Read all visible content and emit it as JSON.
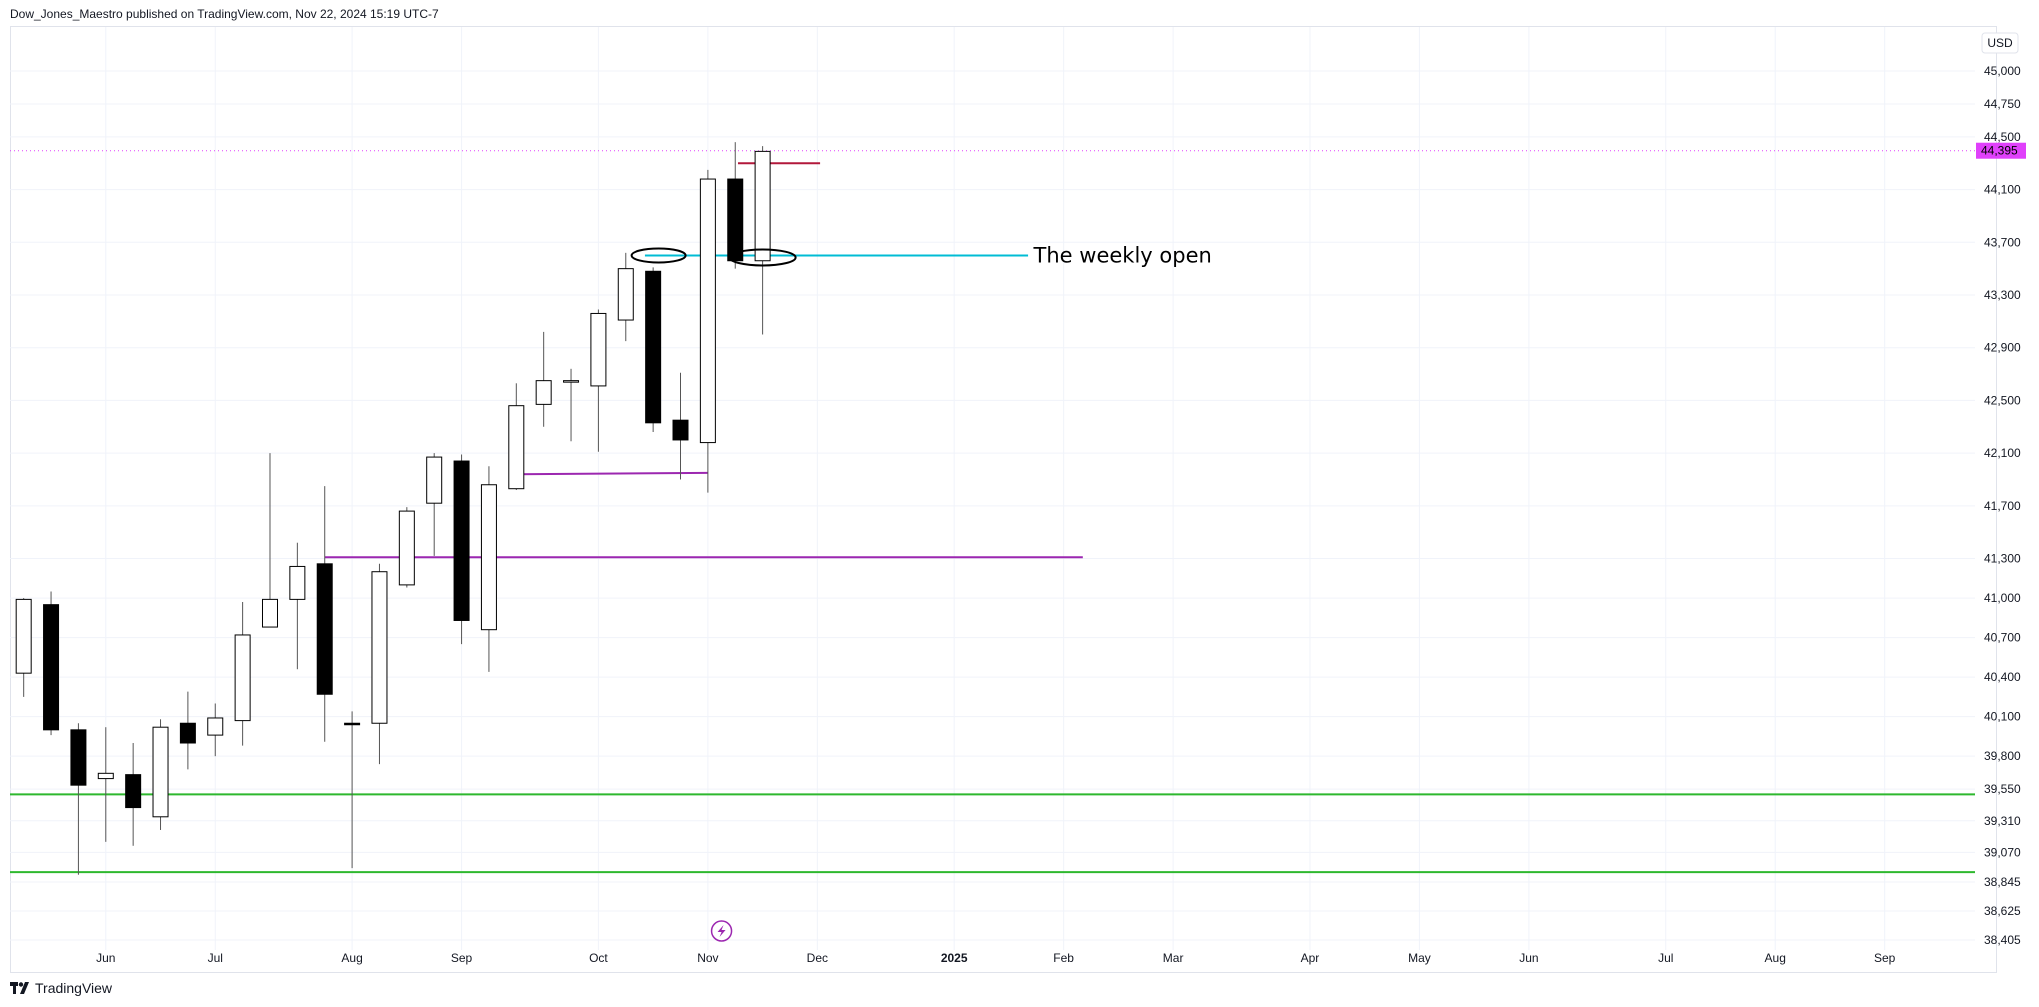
{
  "header": {
    "text": "Dow_Jones_Maestro published on TradingView.com, Nov 22, 2024 15:19 UTC-7"
  },
  "footer": {
    "brand": "TradingView"
  },
  "colors": {
    "grid": "#f0f3fa",
    "axis_text": "#131722",
    "current_price_bg": "#e040fb",
    "weekly_open_line": "#00bcd4",
    "purple_line": "#9c27b0",
    "green_line": "#2eb82e",
    "red_line": "#b2183b",
    "dotted_price_line": "#e040fb",
    "candle_up_fill": "#ffffff",
    "candle_down_fill": "#000000",
    "candle_border": "#000000",
    "event_icon": "#9c27b0"
  },
  "chart_data": {
    "type": "candlestick",
    "title": "",
    "currency_label": "USD",
    "current_price_label": "44,395",
    "current_price": 44395,
    "y_range": [
      38405,
      45000
    ],
    "y_ticks": [
      {
        "value": 45000,
        "label": "45,000"
      },
      {
        "value": 44750,
        "label": "44,750"
      },
      {
        "value": 44500,
        "label": "44,500"
      },
      {
        "value": 44100,
        "label": "44,100"
      },
      {
        "value": 43700,
        "label": "43,700"
      },
      {
        "value": 43300,
        "label": "43,300"
      },
      {
        "value": 42900,
        "label": "42,900"
      },
      {
        "value": 42500,
        "label": "42,500"
      },
      {
        "value": 42100,
        "label": "42,100"
      },
      {
        "value": 41700,
        "label": "41,700"
      },
      {
        "value": 41300,
        "label": "41,300"
      },
      {
        "value": 41000,
        "label": "41,000"
      },
      {
        "value": 40700,
        "label": "40,700"
      },
      {
        "value": 40400,
        "label": "40,400"
      },
      {
        "value": 40100,
        "label": "40,100"
      },
      {
        "value": 39800,
        "label": "39,800"
      },
      {
        "value": 39550,
        "label": "39,550"
      },
      {
        "value": 39310,
        "label": "39,310"
      },
      {
        "value": 39070,
        "label": "39,070"
      },
      {
        "value": 38845,
        "label": "38,845"
      },
      {
        "value": 38625,
        "label": "38,625"
      },
      {
        "value": 38405,
        "label": "38,405"
      }
    ],
    "x_ticks": [
      {
        "week": 3.0,
        "label": "Jun"
      },
      {
        "week": 7.0,
        "label": "Jul"
      },
      {
        "week": 12.0,
        "label": "Aug"
      },
      {
        "week": 16.0,
        "label": "Sep"
      },
      {
        "week": 21.0,
        "label": "Oct"
      },
      {
        "week": 25.0,
        "label": "Nov"
      },
      {
        "week": 29.0,
        "label": "Dec"
      },
      {
        "week": 34.0,
        "label": "2025"
      },
      {
        "week": 38.0,
        "label": "Feb"
      },
      {
        "week": 42.0,
        "label": "Mar"
      },
      {
        "week": 47.0,
        "label": "Apr"
      },
      {
        "week": 51.0,
        "label": "May"
      },
      {
        "week": 55.0,
        "label": "Jun"
      },
      {
        "week": 60.0,
        "label": "Jul"
      },
      {
        "week": 64.0,
        "label": "Aug"
      },
      {
        "week": 68.0,
        "label": "Sep"
      }
    ],
    "x_range": [
      -0.5,
      71.3
    ],
    "candles": [
      {
        "week": 0,
        "open": 40430,
        "high": 41000,
        "low": 40250,
        "close": 40990
      },
      {
        "week": 1,
        "open": 40950,
        "high": 41050,
        "low": 39960,
        "close": 40000
      },
      {
        "week": 2,
        "open": 40000,
        "high": 40050,
        "low": 38900,
        "close": 39580
      },
      {
        "week": 3,
        "open": 39630,
        "high": 40020,
        "low": 39150,
        "close": 39670
      },
      {
        "week": 4,
        "open": 39660,
        "high": 39900,
        "low": 39120,
        "close": 39410
      },
      {
        "week": 5,
        "open": 39340,
        "high": 40080,
        "low": 39240,
        "close": 40020
      },
      {
        "week": 6,
        "open": 40050,
        "high": 40290,
        "low": 39700,
        "close": 39900
      },
      {
        "week": 7,
        "open": 39960,
        "high": 40200,
        "low": 39800,
        "close": 40090
      },
      {
        "week": 8,
        "open": 40070,
        "high": 40970,
        "low": 39880,
        "close": 40720
      },
      {
        "week": 9,
        "open": 40780,
        "high": 42100,
        "low": 40780,
        "close": 40990
      },
      {
        "week": 10,
        "open": 40990,
        "high": 41420,
        "low": 40460,
        "close": 41240
      },
      {
        "week": 11,
        "open": 41260,
        "high": 41850,
        "low": 39910,
        "close": 40270
      },
      {
        "week": 12,
        "open": 40050,
        "high": 40140,
        "low": 38950,
        "close": 40040
      },
      {
        "week": 13,
        "open": 40050,
        "high": 41260,
        "low": 39740,
        "close": 41200
      },
      {
        "week": 14,
        "open": 41100,
        "high": 41690,
        "low": 41080,
        "close": 41660
      },
      {
        "week": 15,
        "open": 41720,
        "high": 42100,
        "low": 41320,
        "close": 42070
      },
      {
        "week": 16,
        "open": 42040,
        "high": 42090,
        "low": 40650,
        "close": 40830
      },
      {
        "week": 17,
        "open": 40760,
        "high": 42000,
        "low": 40440,
        "close": 41860
      },
      {
        "week": 18,
        "open": 41830,
        "high": 42630,
        "low": 41820,
        "close": 42460
      },
      {
        "week": 19,
        "open": 42470,
        "high": 43020,
        "low": 42300,
        "close": 42650
      },
      {
        "week": 20,
        "open": 42640,
        "high": 42740,
        "low": 42190,
        "close": 42650
      },
      {
        "week": 21,
        "open": 42610,
        "high": 43190,
        "low": 42110,
        "close": 43160
      },
      {
        "week": 22,
        "open": 43110,
        "high": 43620,
        "low": 42950,
        "close": 43500
      },
      {
        "week": 23,
        "open": 43480,
        "high": 43510,
        "low": 42260,
        "close": 42330
      },
      {
        "week": 24,
        "open": 42350,
        "high": 42710,
        "low": 41900,
        "close": 42200
      },
      {
        "week": 25,
        "open": 42180,
        "high": 44250,
        "low": 41800,
        "close": 44180
      },
      {
        "week": 26,
        "open": 44180,
        "high": 44460,
        "low": 43500,
        "close": 43560
      },
      {
        "week": 27,
        "open": 43560,
        "high": 44430,
        "low": 43000,
        "close": 44390
      }
    ],
    "horizontal_lines": [
      {
        "name": "weekly-open-line",
        "price": 43600,
        "from_week": 22.7,
        "to_week": 36.7,
        "color": "#00bcd4",
        "label": "The weekly open"
      },
      {
        "name": "purple-line-upper",
        "price": 41940,
        "from_week": 18.0,
        "to_week": 25.0,
        "color": "#9c27b0",
        "end_price": 41950
      },
      {
        "name": "purple-line-lower",
        "price": 41310,
        "from_week": 11.0,
        "to_week": 38.7,
        "color": "#9c27b0"
      },
      {
        "name": "green-line-upper",
        "price": 39510,
        "from_week": -0.5,
        "to_week": 71.3,
        "color": "#2eb82e"
      },
      {
        "name": "green-line-lower",
        "price": 38920,
        "from_week": -0.5,
        "to_week": 71.3,
        "color": "#2eb82e"
      },
      {
        "name": "red-line",
        "price": 44300,
        "from_week": 26.1,
        "to_week": 29.1,
        "color": "#b2183b"
      }
    ],
    "annotations": [
      {
        "name": "weekly-open-label",
        "text": "The weekly open",
        "week": 36.9,
        "price": 43600
      }
    ]
  }
}
